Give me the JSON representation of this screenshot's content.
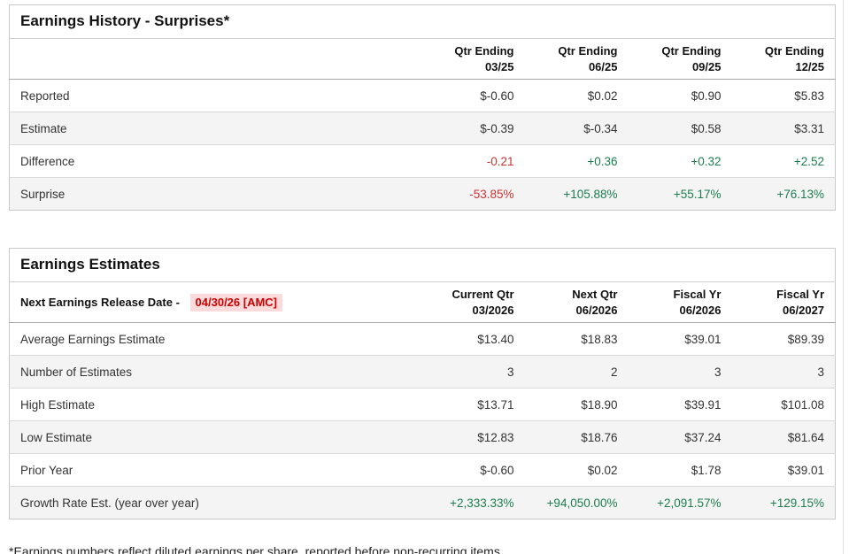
{
  "colors": {
    "positive": "#1d7d4e",
    "negative": "#cc3333",
    "release_date_text": "#cc0000",
    "release_date_bg": "#fbdbdb"
  },
  "surprises": {
    "title": "Earnings History - Surprises*",
    "columns": [
      {
        "line1": "Qtr Ending",
        "line2": "03/25"
      },
      {
        "line1": "Qtr Ending",
        "line2": "06/25"
      },
      {
        "line1": "Qtr Ending",
        "line2": "09/25"
      },
      {
        "line1": "Qtr Ending",
        "line2": "12/25"
      }
    ],
    "rows": [
      {
        "label": "Reported",
        "values": [
          "$-0.60",
          "$0.02",
          "$0.90",
          "$5.83"
        ]
      },
      {
        "label": "Estimate",
        "values": [
          "$-0.39",
          "$-0.34",
          "$0.58",
          "$3.31"
        ]
      },
      {
        "label": "Difference",
        "values": [
          "-0.21",
          "+0.36",
          "+0.32",
          "+2.52"
        ]
      },
      {
        "label": "Surprise",
        "values": [
          "-53.85%",
          "+105.88%",
          "+55.17%",
          "+76.13%"
        ]
      }
    ]
  },
  "estimates": {
    "title": "Earnings Estimates",
    "release_label": "Next Earnings Release Date -",
    "release_date": "04/30/26 [AMC]",
    "columns": [
      {
        "line1": "Current Qtr",
        "line2": "03/2026"
      },
      {
        "line1": "Next Qtr",
        "line2": "06/2026"
      },
      {
        "line1": "Fiscal Yr",
        "line2": "06/2026"
      },
      {
        "line1": "Fiscal Yr",
        "line2": "06/2027"
      }
    ],
    "rows": [
      {
        "label": "Average Earnings Estimate",
        "values": [
          "$13.40",
          "$18.83",
          "$39.01",
          "$89.39"
        ]
      },
      {
        "label": "Number of Estimates",
        "values": [
          "3",
          "2",
          "3",
          "3"
        ]
      },
      {
        "label": "High Estimate",
        "values": [
          "$13.71",
          "$18.90",
          "$39.91",
          "$101.08"
        ]
      },
      {
        "label": "Low Estimate",
        "values": [
          "$12.83",
          "$18.76",
          "$37.24",
          "$81.64"
        ]
      },
      {
        "label": "Prior Year",
        "values": [
          "$-0.60",
          "$0.02",
          "$1.78",
          "$39.01"
        ]
      },
      {
        "label": "Growth Rate Est. (year over year)",
        "values": [
          "+2,333.33%",
          "+94,050.00%",
          "+2,091.57%",
          "+129.15%"
        ]
      }
    ]
  },
  "footnote": "*Earnings numbers reflect diluted earnings per share, reported before non-recurring items."
}
